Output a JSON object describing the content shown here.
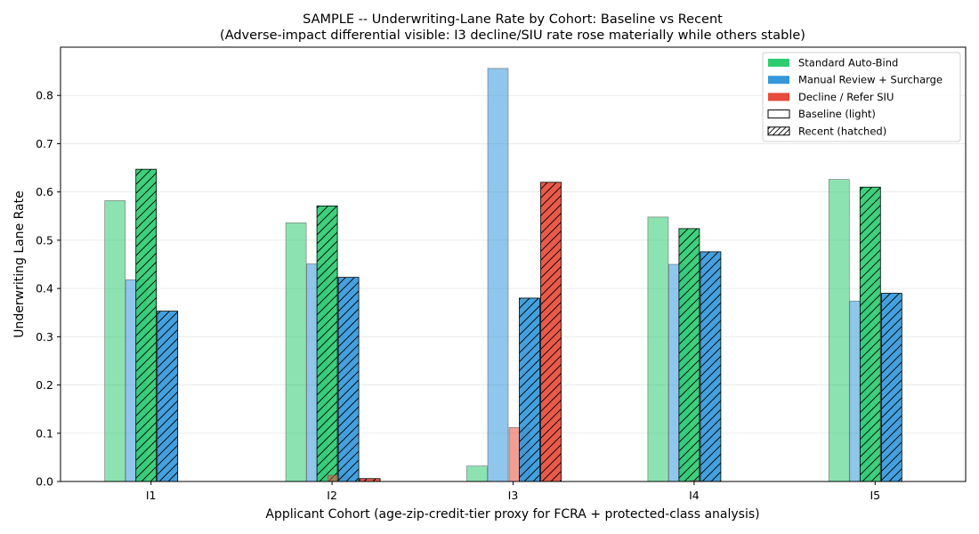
{
  "chart_data": {
    "type": "bar",
    "title": "SAMPLE -- Underwriting-Lane Rate by Cohort: Baseline vs Recent",
    "subtitle": "(Adverse-impact differential visible: I3 decline/SIU rate rose materially while others stable)",
    "xlabel": "Applicant Cohort (age-zip-credit-tier proxy for FCRA + protected-class analysis)",
    "ylabel": "Underwriting Lane Rate",
    "categories": [
      "I1",
      "I2",
      "I3",
      "I4",
      "I5"
    ],
    "ylim": [
      0,
      0.9
    ],
    "yticks": [
      "0.0",
      "0.1",
      "0.2",
      "0.3",
      "0.4",
      "0.5",
      "0.6",
      "0.7",
      "0.8"
    ],
    "grid": "horizontal",
    "legend_position": "top-right",
    "series": [
      {
        "name": "Standard Auto-Bind",
        "period": "baseline",
        "color": "#2ecc71",
        "values": [
          0.582,
          0.536,
          0.032,
          0.548,
          0.626
        ]
      },
      {
        "name": "Manual Review + Surcharge",
        "period": "baseline",
        "color": "#3498db",
        "values": [
          0.418,
          0.451,
          0.856,
          0.45,
          0.374
        ]
      },
      {
        "name": "Decline / Refer SIU",
        "period": "baseline",
        "color": "#e74c3c",
        "values": [
          0.0,
          0.013,
          0.112,
          0.002,
          0.0
        ]
      },
      {
        "name": "Standard Auto-Bind",
        "period": "recent",
        "color": "#2ecc71",
        "values": [
          0.647,
          0.571,
          0.0,
          0.524,
          0.61
        ]
      },
      {
        "name": "Manual Review + Surcharge",
        "period": "recent",
        "color": "#3498db",
        "values": [
          0.353,
          0.423,
          0.38,
          0.476,
          0.39
        ]
      },
      {
        "name": "Decline / Refer SIU",
        "period": "recent",
        "color": "#e74c3c",
        "values": [
          0.0,
          0.006,
          0.62,
          0.0,
          0.0
        ]
      }
    ],
    "legend": [
      {
        "label": "Standard Auto-Bind",
        "kind": "color",
        "color": "#2ecc71"
      },
      {
        "label": "Manual Review + Surcharge",
        "kind": "color",
        "color": "#3498db"
      },
      {
        "label": "Decline / Refer SIU",
        "kind": "color",
        "color": "#e74c3c"
      },
      {
        "label": "Baseline (light)",
        "kind": "outline"
      },
      {
        "label": "Recent (hatched)",
        "kind": "hatch"
      }
    ]
  }
}
